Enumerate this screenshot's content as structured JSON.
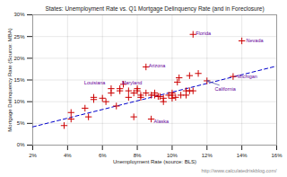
{
  "chart_data": {
    "type": "scatter",
    "title": "States: Unemployment Rate vs. Q1 Mortgage Delinquency Rate (and in Foreclosure)",
    "x_label": "Unemployment Rate (source: BLS)",
    "y_label": "Mortgage Delinquency Rate (Source: MBA)",
    "caption": "http://www.calculatedriskblog.com/",
    "xlim": [
      0.02,
      0.16
    ],
    "ylim": [
      0.0,
      0.3
    ],
    "xticks": [
      {
        "value": 0.02,
        "label": "2%"
      },
      {
        "value": 0.04,
        "label": "4%"
      },
      {
        "value": 0.06,
        "label": "6%"
      },
      {
        "value": 0.08,
        "label": "8%"
      },
      {
        "value": 0.1,
        "label": "10%"
      },
      {
        "value": 0.12,
        "label": "12%"
      },
      {
        "value": 0.14,
        "label": "14%"
      },
      {
        "value": 0.16,
        "label": "16%"
      }
    ],
    "yticks": [
      {
        "value": 0.0,
        "label": "0%"
      },
      {
        "value": 0.05,
        "label": "5%"
      },
      {
        "value": 0.1,
        "label": "10%"
      },
      {
        "value": 0.15,
        "label": "15%"
      },
      {
        "value": 0.2,
        "label": "20%"
      },
      {
        "value": 0.25,
        "label": "25%"
      },
      {
        "value": 0.3,
        "label": "30%"
      }
    ],
    "grid": true,
    "color": "#cc0000",
    "marker": "plus",
    "x": [
      0.038,
      0.042,
      0.042,
      0.05,
      0.052,
      0.055,
      0.055,
      0.06,
      0.062,
      0.065,
      0.065,
      0.068,
      0.07,
      0.07,
      0.072,
      0.075,
      0.075,
      0.078,
      0.078,
      0.08,
      0.08,
      0.082,
      0.082,
      0.085,
      0.085,
      0.088,
      0.088,
      0.09,
      0.09,
      0.092,
      0.093,
      0.095,
      0.095,
      0.098,
      0.1,
      0.1,
      0.1,
      0.102,
      0.103,
      0.104,
      0.105,
      0.108,
      0.108,
      0.11,
      0.11,
      0.112,
      0.112,
      0.115,
      0.12,
      0.135,
      0.14
    ],
    "values": [
      0.045,
      0.06,
      0.075,
      0.085,
      0.065,
      0.11,
      0.105,
      0.108,
      0.1,
      0.13,
      0.12,
      0.09,
      0.13,
      0.125,
      0.14,
      0.125,
      0.11,
      0.065,
      0.12,
      0.13,
      0.125,
      0.115,
      0.11,
      0.18,
      0.12,
      0.115,
      0.06,
      0.115,
      0.12,
      0.112,
      0.112,
      0.108,
      0.1,
      0.115,
      0.115,
      0.12,
      0.108,
      0.11,
      0.145,
      0.155,
      0.115,
      0.125,
      0.115,
      0.16,
      0.125,
      0.255,
      0.125,
      0.165,
      0.148,
      0.158,
      0.24
    ],
    "trendline": {
      "x": [
        0.02,
        0.16
      ],
      "values": [
        0.042,
        0.182
      ],
      "color": "#0000cc",
      "line_style": "dashed"
    },
    "annotations": [
      {
        "text": "Florida",
        "x": 0.1125,
        "y": 0.258,
        "color": "#660099"
      },
      {
        "text": "Nevada",
        "x": 0.1415,
        "y": 0.24,
        "color": "#660099"
      },
      {
        "text": "Arizona",
        "x": 0.0855,
        "y": 0.183,
        "color": "#660099"
      },
      {
        "text": "Michigan",
        "x": 0.1365,
        "y": 0.158,
        "color": "#660099"
      },
      {
        "text": "California",
        "x": 0.1235,
        "y": 0.128,
        "color": "#660099",
        "arrow": {
          "x1": 0.127,
          "y1": 0.138,
          "x2": 0.12,
          "y2": 0.148,
          "color": "#5555aa"
        }
      },
      {
        "text": "Louisiana",
        "x": 0.0485,
        "y": 0.143,
        "color": "#660099"
      },
      {
        "text": "Maryland",
        "x": 0.07,
        "y": 0.143,
        "color": "#660099"
      },
      {
        "text": "Alaska",
        "x": 0.0885,
        "y": 0.055,
        "color": "#660099"
      }
    ]
  }
}
